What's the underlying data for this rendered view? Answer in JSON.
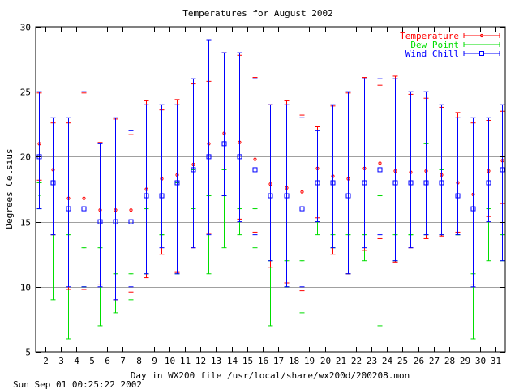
{
  "chart_data": {
    "type": "errorbar",
    "title": "Temperatures for August 2002",
    "xlabel": "Day in WX200 file /usr/local/share/wx200d/200208.mon",
    "ylabel": "Degrees Celsius",
    "footer": "Sun Sep 01 00:25:22 2002",
    "ylim": [
      5,
      30
    ],
    "yticks": [
      5,
      10,
      15,
      20,
      25,
      30
    ],
    "xlim": [
      1.4,
      31.6
    ],
    "xticks": [
      2,
      3,
      4,
      5,
      6,
      7,
      8,
      9,
      10,
      11,
      12,
      13,
      14,
      15,
      16,
      17,
      18,
      19,
      20,
      21,
      22,
      23,
      24,
      25,
      26,
      27,
      28,
      29,
      30,
      31
    ],
    "grid": true,
    "legend_position": "top-right",
    "series": [
      {
        "name": "Temperature",
        "color": "#ff0000",
        "x": [
          1.6,
          2.5,
          3.5,
          4.5,
          5.5,
          6.5,
          7.5,
          8.5,
          9.5,
          10.5,
          11.5,
          12.5,
          13.5,
          14.5,
          15.5,
          16.5,
          17.5,
          18.5,
          19.5,
          20.5,
          21.5,
          22.5,
          23.5,
          24.5,
          25.5,
          26.5,
          27.5,
          28.5,
          29.5,
          30.5,
          31.4
        ],
        "y": [
          21.0,
          19.0,
          16.8,
          16.8,
          15.9,
          15.9,
          15.9,
          17.5,
          18.3,
          18.6,
          19.4,
          21.0,
          21.8,
          21.1,
          19.8,
          17.9,
          17.6,
          17.3,
          19.1,
          18.5,
          18.3,
          19.1,
          19.5,
          18.9,
          18.8,
          18.9,
          18.6,
          18.0,
          17.1,
          18.9,
          19.7
        ],
        "low": [
          18.2,
          14.0,
          9.8,
          9.8,
          10.2,
          9.0,
          9.6,
          10.7,
          12.5,
          11.1,
          13.0,
          14.1,
          17.0,
          15.2,
          14.2,
          11.5,
          10.3,
          9.7,
          15.3,
          12.5,
          11.0,
          12.8,
          13.7,
          11.9,
          13.0,
          13.7,
          13.9,
          14.2,
          10.2,
          15.4,
          16.4
        ],
        "high": [
          24.9,
          22.6,
          22.6,
          24.9,
          21.1,
          22.9,
          21.7,
          24.3,
          23.6,
          24.4,
          25.6,
          25.8,
          28.0,
          27.8,
          26.1,
          24.0,
          24.3,
          23.2,
          22.3,
          23.9,
          24.9,
          26.1,
          25.5,
          26.2,
          24.8,
          24.5,
          23.8,
          23.4,
          22.6,
          22.8,
          23.5
        ]
      },
      {
        "name": "Dew Point",
        "color": "#00dd00",
        "x": [
          1.6,
          2.5,
          3.5,
          4.5,
          5.5,
          6.5,
          7.5,
          8.5,
          9.5,
          10.5,
          11.5,
          12.5,
          13.5,
          14.5,
          15.5,
          16.5,
          17.5,
          18.5,
          19.5,
          20.5,
          21.5,
          22.5,
          23.5,
          24.5,
          25.5,
          26.5,
          27.5,
          28.5,
          29.5,
          30.5,
          31.4
        ],
        "y": [
          17.0,
          14.0,
          14.0,
          13.0,
          13.0,
          11.0,
          11.0,
          16.0,
          14.0,
          18.0,
          19.0,
          17.0,
          19.0,
          16.0,
          16.0,
          12.0,
          12.0,
          12.0,
          15.0,
          14.0,
          14.0,
          14.0,
          17.0,
          14.0,
          14.0,
          21.0,
          19.0,
          14.0,
          11.0,
          16.0,
          14.0
        ],
        "low": [
          16.0,
          9.0,
          6.0,
          10.0,
          7.0,
          8.0,
          9.0,
          11.0,
          14.0,
          11.0,
          16.0,
          11.0,
          13.0,
          14.0,
          13.0,
          7.0,
          10.0,
          8.0,
          14.0,
          13.0,
          11.0,
          12.0,
          7.0,
          12.0,
          14.0,
          14.0,
          14.0,
          14.0,
          6.0,
          12.0,
          12.0
        ],
        "high": [
          18.0,
          14.0,
          14.0,
          13.0,
          13.0,
          11.0,
          11.0,
          16.0,
          14.0,
          18.0,
          19.0,
          17.0,
          19.0,
          16.0,
          16.0,
          12.0,
          12.0,
          12.0,
          15.0,
          14.0,
          14.0,
          14.0,
          17.0,
          14.0,
          14.0,
          21.0,
          19.0,
          14.0,
          11.0,
          16.0,
          14.0
        ]
      },
      {
        "name": "Wind Chill",
        "color": "#0000ff",
        "x": [
          1.6,
          2.5,
          3.5,
          4.5,
          5.5,
          6.5,
          7.5,
          8.5,
          9.5,
          10.5,
          11.5,
          12.5,
          13.5,
          14.5,
          15.5,
          16.5,
          17.5,
          18.5,
          19.5,
          20.5,
          21.5,
          22.5,
          23.5,
          24.5,
          25.5,
          26.5,
          27.5,
          28.5,
          29.5,
          30.5,
          31.4
        ],
        "y": [
          20,
          18,
          16,
          16,
          15,
          15,
          15,
          17,
          17,
          18,
          19,
          20,
          21,
          20,
          19,
          17,
          17,
          16,
          18,
          18,
          17,
          18,
          19,
          18,
          18,
          18,
          18,
          17,
          16,
          18,
          19
        ],
        "low": [
          16,
          14,
          10,
          10,
          10,
          9,
          10,
          11,
          13,
          11,
          13,
          14,
          17,
          15,
          14,
          12,
          10,
          10,
          15,
          13,
          11,
          13,
          14,
          12,
          13,
          14,
          14,
          14,
          10,
          15,
          12
        ],
        "high": [
          25,
          23,
          23,
          25,
          21,
          23,
          22,
          24,
          24,
          24,
          26,
          29,
          28,
          28,
          26,
          24,
          24,
          23,
          22,
          24,
          25,
          26,
          26,
          26,
          25,
          25,
          24,
          23,
          23,
          23,
          24
        ]
      }
    ]
  }
}
